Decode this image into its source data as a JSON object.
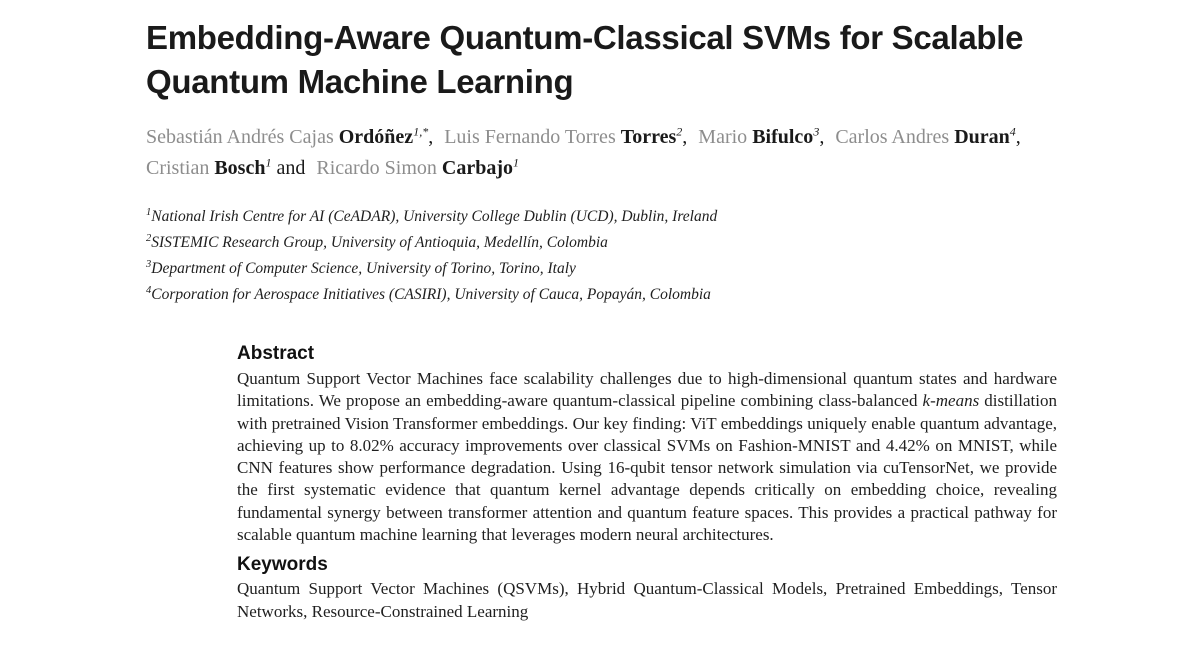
{
  "colors": {
    "ink": "#1a1a1a",
    "title_ink": "#111111",
    "given_name_gray": "#8d8d8d",
    "background": "#ffffff"
  },
  "paper": {
    "title": "Embedding-Aware Quantum-Classical SVMs for Scalable Quantum Machine Learning",
    "authors": [
      {
        "given": "Sebastián Andrés Cajas",
        "family": "Ordóñez",
        "sup": "1,*",
        "sep": ","
      },
      {
        "given": "Luis Fernando Torres",
        "family": "Torres",
        "sup": "2",
        "sep": ","
      },
      {
        "given": "Mario",
        "family": "Bifulco",
        "sup": "3",
        "sep": ","
      },
      {
        "given": "Carlos Andres",
        "family": "Duran",
        "sup": "4",
        "sep": ","
      },
      {
        "given": "Cristian",
        "family": "Bosch",
        "sup": "1",
        "sep": " and"
      },
      {
        "given": "Ricardo Simon",
        "family": "Carbajo",
        "sup": "1",
        "sep": ""
      }
    ],
    "affiliations": [
      {
        "sup": "1",
        "text": "National Irish Centre for AI (CeADAR), University College Dublin (UCD), Dublin, Ireland"
      },
      {
        "sup": "2",
        "text": "SISTEMIC Research Group, University of Antioquia, Medellín, Colombia"
      },
      {
        "sup": "3",
        "text": "Department of Computer Science, University of Torino, Torino, Italy"
      },
      {
        "sup": "4",
        "text": "Corporation for Aerospace Initiatives (CASIRI), University of Cauca, Popayán, Colombia"
      }
    ],
    "abstract": {
      "heading": "Abstract",
      "part1": "Quantum Support Vector Machines face scalability challenges due to high-dimensional quantum states and hardware limitations. We propose an embedding-aware quantum-classical pipeline combining class-balanced ",
      "italic_term": "k-means",
      "part2": " distillation with pretrained Vision Transformer embeddings. Our key finding: ViT embeddings uniquely enable quantum advantage, achieving up to 8.02% accuracy improvements over classical SVMs on Fashion-MNIST and 4.42% on MNIST, while CNN features show performance degradation. Using 16-qubit tensor network simulation via cuTensorNet, we provide the first systematic evidence that quantum kernel advantage depends critically on embedding choice, revealing fundamental synergy between transformer attention and quantum feature spaces. This provides a practical pathway for scalable quantum machine learning that leverages modern neural architectures."
    },
    "keywords": {
      "heading": "Keywords",
      "text": "Quantum Support Vector Machines (QSVMs), Hybrid Quantum-Classical Models, Pretrained Embeddings, Tensor Networks, Resource-Constrained Learning"
    }
  }
}
